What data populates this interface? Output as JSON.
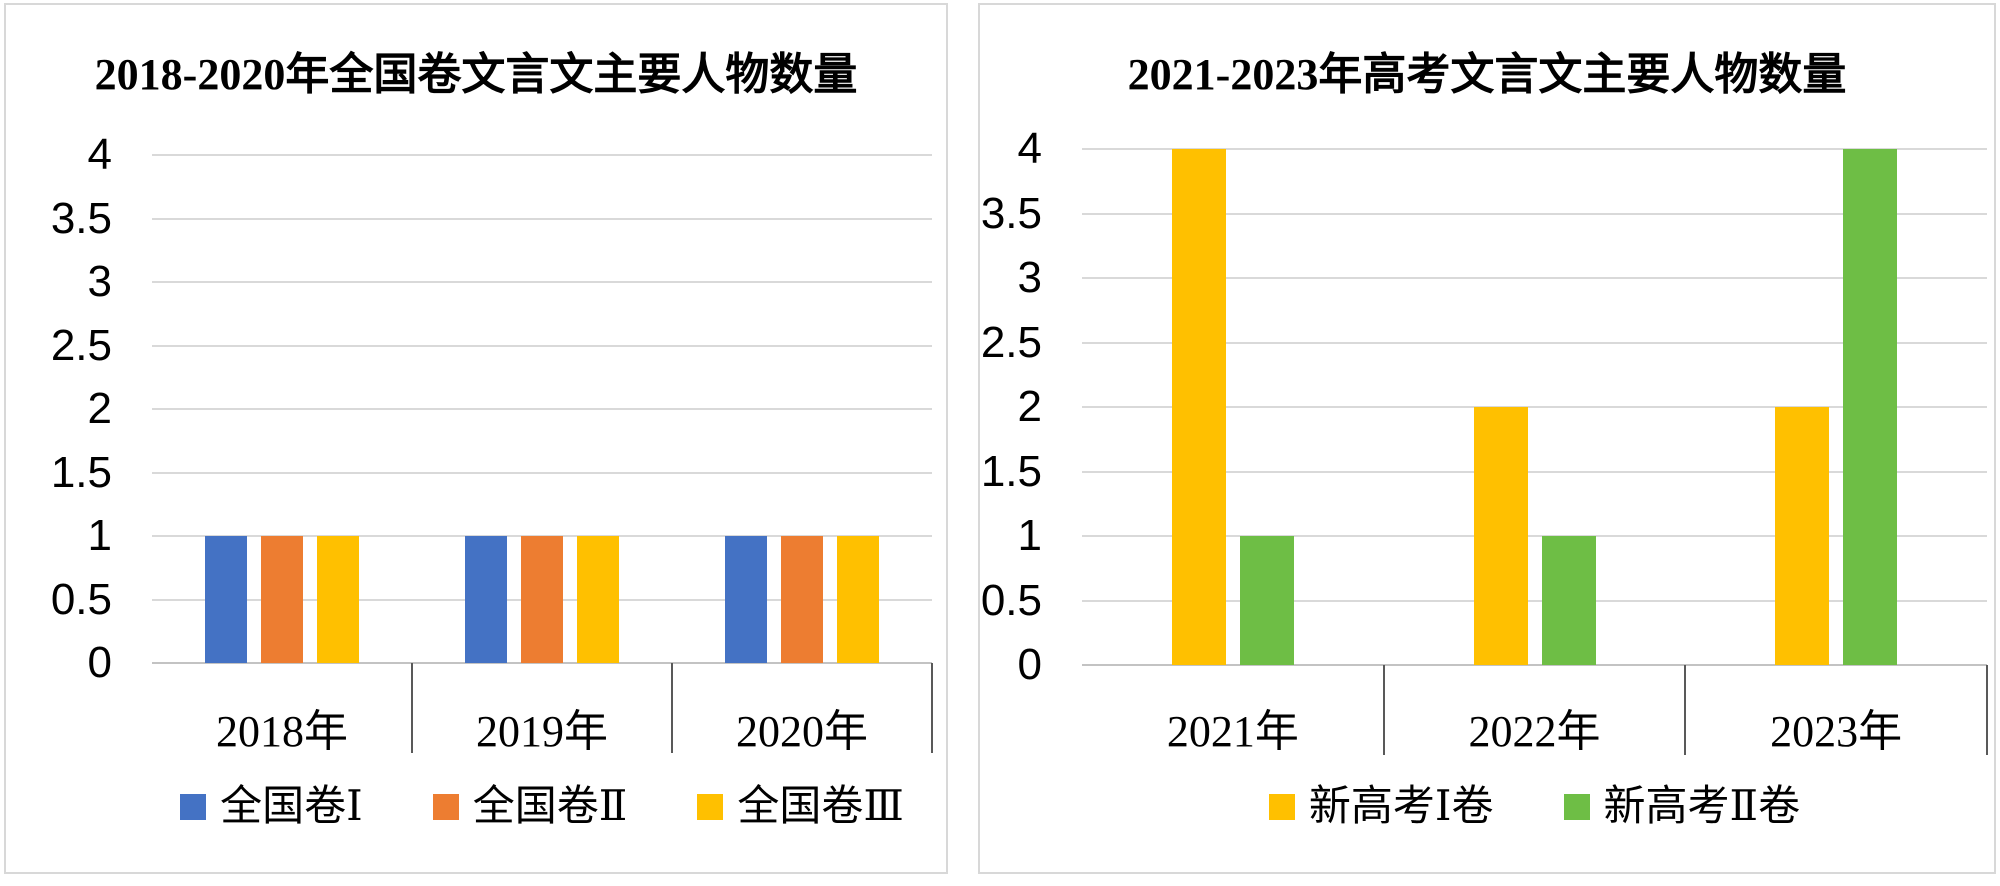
{
  "figure": {
    "background": "#ffffff",
    "panel_border_color": "#d8d8d8",
    "gridline_color": "#d9d9d9",
    "axis_line_color": "#c3c3c3",
    "category_tick_color": "#595959",
    "text_color": "#000000"
  },
  "chart_data": [
    {
      "type": "bar",
      "title": "2018-2020年全国卷文言文主要人物数量",
      "categories": [
        "2018年",
        "2019年",
        "2020年"
      ],
      "series": [
        {
          "name": "全国卷Ⅰ",
          "color": "#4472C4",
          "values": [
            1,
            1,
            1
          ]
        },
        {
          "name": "全国卷Ⅱ",
          "color": "#ED7D31",
          "values": [
            1,
            1,
            1
          ]
        },
        {
          "name": "全国卷Ⅲ",
          "color": "#FFC000",
          "values": [
            1,
            1,
            1
          ]
        }
      ],
      "xlabel": "",
      "ylabel": "",
      "ylim": [
        0,
        4
      ],
      "yticks": [
        0,
        0.5,
        1,
        1.5,
        2,
        2.5,
        3,
        3.5,
        4
      ],
      "ytick_labels": [
        "0",
        "0.5",
        "1",
        "1.5",
        "2",
        "2.5",
        "3",
        "3.5",
        "4"
      ],
      "grid": true,
      "legend_position": "bottom"
    },
    {
      "type": "bar",
      "title": "2021-2023年高考文言文主要人物数量",
      "categories": [
        "2021年",
        "2022年",
        "2023年"
      ],
      "series": [
        {
          "name": "新高考Ⅰ卷",
          "color": "#FFC000",
          "values": [
            4,
            2,
            2
          ]
        },
        {
          "name": "新高考Ⅱ卷",
          "color": "#6EBE45",
          "values": [
            1,
            1,
            4
          ]
        }
      ],
      "xlabel": "",
      "ylabel": "",
      "ylim": [
        0,
        4
      ],
      "yticks": [
        0,
        0.5,
        1,
        1.5,
        2,
        2.5,
        3,
        3.5,
        4
      ],
      "ytick_labels": [
        "0",
        "0.5",
        "1",
        "1.5",
        "2",
        "2.5",
        "3",
        "3.5",
        "4"
      ],
      "grid": true,
      "legend_position": "bottom"
    }
  ]
}
